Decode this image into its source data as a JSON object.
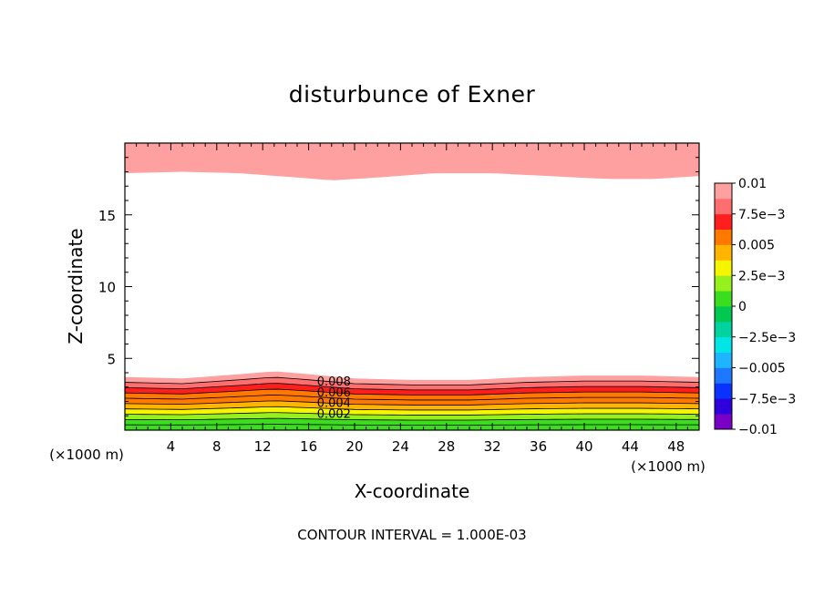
{
  "chart_data": {
    "type": "contour",
    "title": "disturbunce of Exner",
    "xlabel": "X-coordinate",
    "ylabel": "Z-coordinate",
    "x_unit_left": "(×1000 m)",
    "x_unit_right": "(×1000 m)",
    "xlim": [
      0,
      50
    ],
    "ylim": [
      0,
      20
    ],
    "xticks": [
      "4",
      "8",
      "12",
      "16",
      "20",
      "24",
      "28",
      "32",
      "36",
      "40",
      "44",
      "48"
    ],
    "yticks": [
      "5",
      "10",
      "15"
    ],
    "colorbar": {
      "labels": [
        "0.01",
        "7.5e-3",
        "0.005",
        "2.5e-3",
        "0",
        "-2.5e-3",
        "-0.005",
        "-7.5e-3",
        "-0.01"
      ],
      "range": [
        -0.01,
        0.01
      ],
      "levels": 16,
      "colors": [
        "#7a00c8",
        "#2d00dc",
        "#0a32ff",
        "#1e78ff",
        "#1eb4ff",
        "#00e6e6",
        "#00d2a0",
        "#00c850",
        "#3cdc1e",
        "#96f01e",
        "#f5f500",
        "#ffb400",
        "#ff7800",
        "#ff1e1e",
        "#ff6e6e",
        "#ffa0a0"
      ]
    },
    "contour_labels": [
      "0.008",
      "0.006",
      "0.004",
      "0.002"
    ],
    "contour_interval_text": "CONTOUR INTERVAL = 1.000E-03",
    "top_band": {
      "x": [
        0,
        5,
        10,
        15,
        18,
        22,
        27,
        32,
        37,
        42,
        46,
        50
      ],
      "z_outer_lower": [
        17.9,
        18.0,
        17.9,
        17.6,
        17.4,
        17.6,
        17.9,
        17.9,
        17.7,
        17.5,
        17.5,
        17.7
      ],
      "z_inner_lower": [
        18.7,
        18.8,
        18.7,
        18.4,
        18.2,
        18.4,
        18.7,
        18.7,
        18.5,
        18.3,
        18.3,
        18.5
      ],
      "values": [
        0.009,
        0.01
      ]
    },
    "bottom_band": {
      "x": [
        0,
        5,
        10,
        13,
        16,
        20,
        25,
        30,
        35,
        40,
        45,
        50
      ],
      "z_top": [
        3.7,
        3.6,
        3.9,
        4.1,
        3.9,
        3.6,
        3.5,
        3.5,
        3.7,
        3.8,
        3.8,
        3.7
      ],
      "layer_values": [
        0.009,
        0.008,
        0.007,
        0.006,
        0.005,
        0.004,
        0.003,
        0.002,
        0.001,
        0.0
      ]
    }
  }
}
